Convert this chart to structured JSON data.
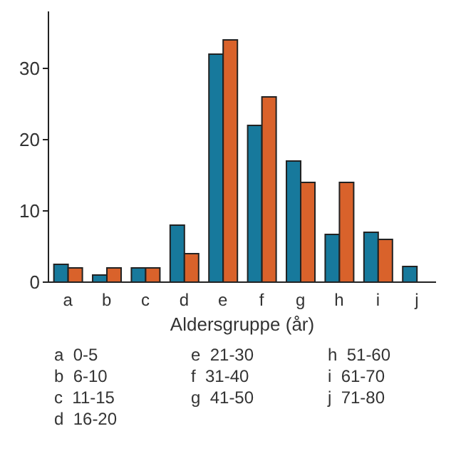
{
  "chart_data": {
    "type": "bar",
    "xlabel": "Aldersgruppe (år)",
    "categories": [
      "a",
      "b",
      "c",
      "d",
      "e",
      "f",
      "g",
      "h",
      "i",
      "j"
    ],
    "series": [
      {
        "color": "#17799c",
        "values": [
          2.5,
          1,
          2,
          8,
          32,
          22,
          17,
          6.7,
          7,
          2.2
        ]
      },
      {
        "color": "#d9622b",
        "values": [
          2,
          2,
          2,
          4,
          34,
          26,
          14,
          14,
          6,
          null
        ]
      }
    ],
    "ylim": [
      0,
      38
    ],
    "yticks": [
      0,
      10,
      20,
      30
    ],
    "annotations": [
      "a  0-5",
      "b  6-10",
      "c  11-15",
      "d  16-20",
      "e  21-30",
      "f  31-40",
      "g  41-50",
      "h  51-60",
      "i  61-70",
      "j  71-80"
    ]
  }
}
